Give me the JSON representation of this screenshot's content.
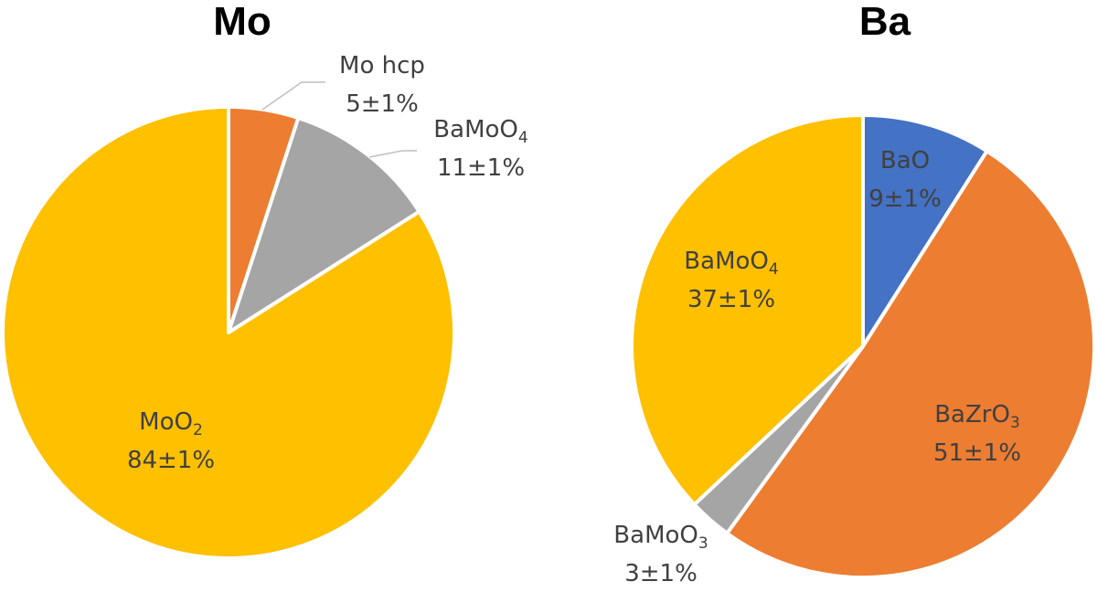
{
  "chart_data": [
    {
      "type": "pie",
      "title": "Mo",
      "slices": [
        {
          "label": "Mo hcp",
          "label_parts": [
            [
              "Mo hcp",
              false
            ]
          ],
          "value": 5,
          "value_text": "5±1%",
          "color": "#ED7D31"
        },
        {
          "label": "BaMoO4",
          "label_parts": [
            [
              "BaMoO",
              false
            ],
            [
              "4",
              true
            ]
          ],
          "value": 11,
          "value_text": "11±1%",
          "color": "#A5A5A5"
        },
        {
          "label": "MoO2",
          "label_parts": [
            [
              "MoO",
              false
            ],
            [
              "2",
              true
            ]
          ],
          "value": 84,
          "value_text": "84±1%",
          "color": "#FFC000"
        }
      ]
    },
    {
      "type": "pie",
      "title": "Ba",
      "slices": [
        {
          "label": "BaO",
          "label_parts": [
            [
              "BaO",
              false
            ]
          ],
          "value": 9,
          "value_text": "9±1%",
          "color": "#4472C4"
        },
        {
          "label": "BaZrO3",
          "label_parts": [
            [
              "BaZrO",
              false
            ],
            [
              "3",
              true
            ]
          ],
          "value": 51,
          "value_text": "51±1%",
          "color": "#ED7D31"
        },
        {
          "label": "BaMoO3",
          "label_parts": [
            [
              "BaMoO",
              false
            ],
            [
              "3",
              true
            ]
          ],
          "value": 3,
          "value_text": "3±1%",
          "color": "#A5A5A5"
        },
        {
          "label": "BaMoO4",
          "label_parts": [
            [
              "BaMoO",
              false
            ],
            [
              "4",
              true
            ]
          ],
          "value": 37,
          "value_text": "37±1%",
          "color": "#FFC000"
        }
      ]
    }
  ]
}
